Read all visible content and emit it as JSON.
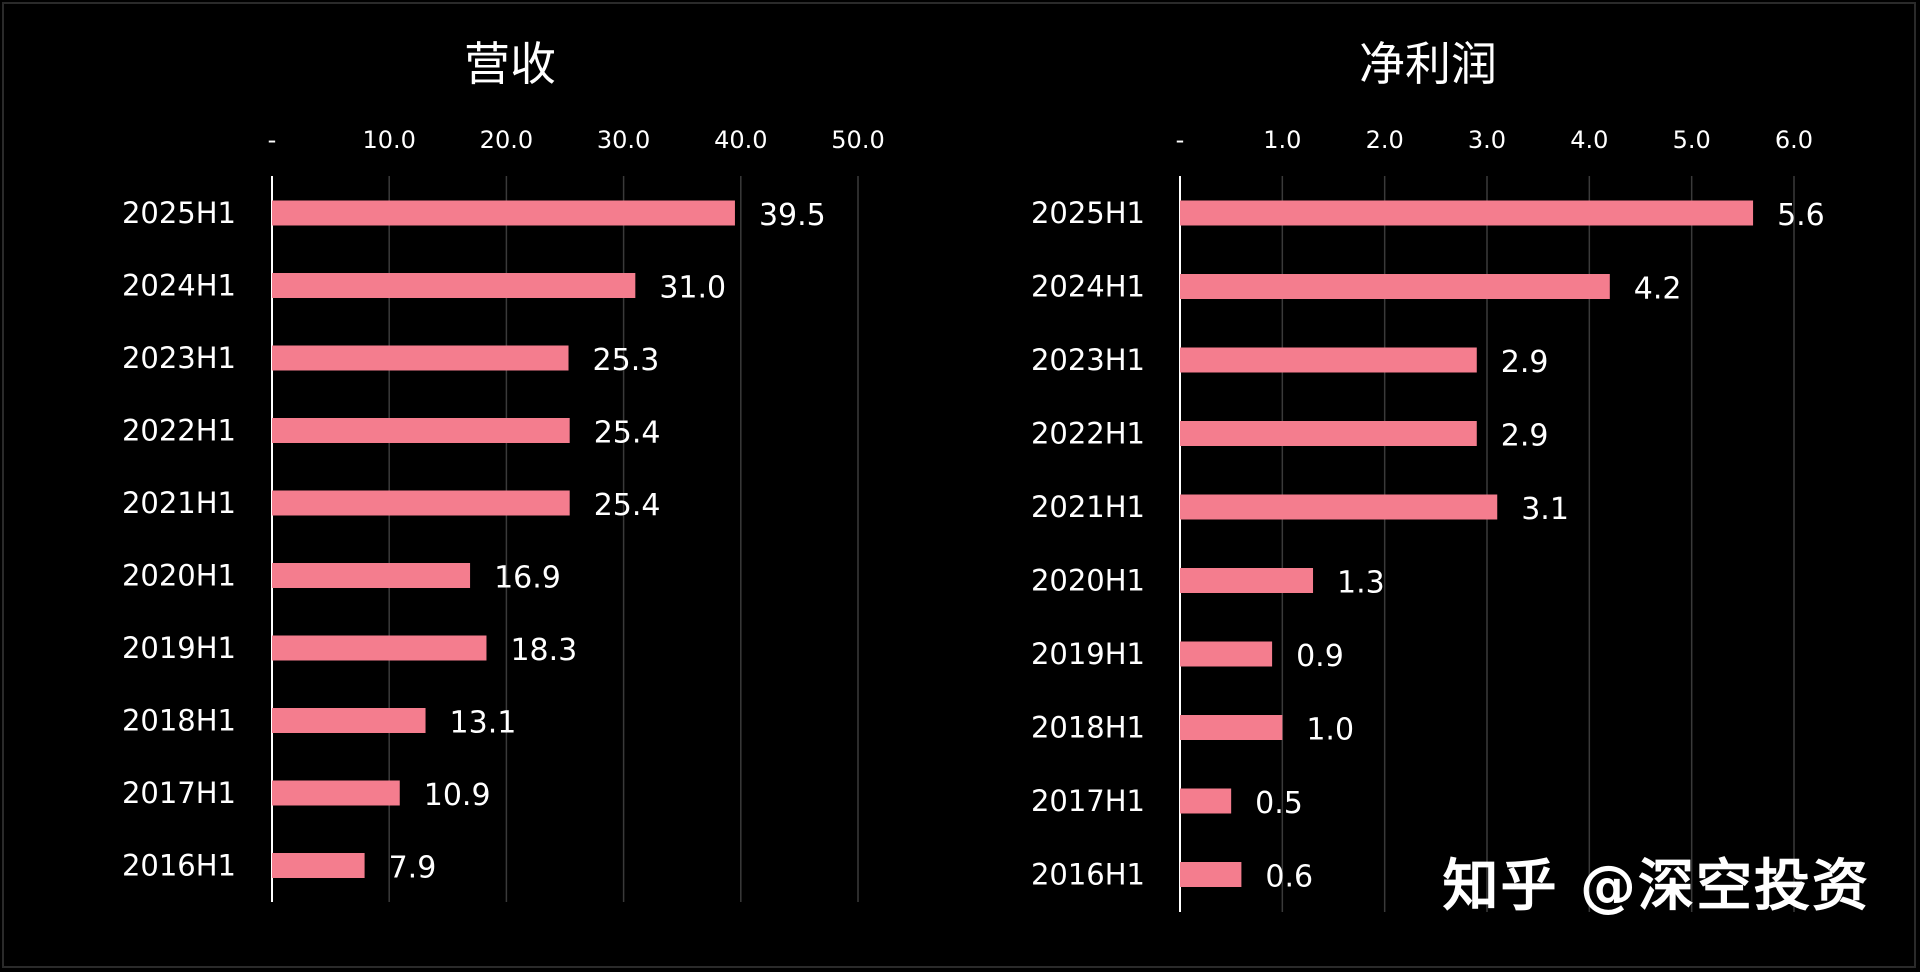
{
  "chart_data": [
    {
      "type": "bar",
      "orientation": "horizontal",
      "title": "营收",
      "categories": [
        "2025H1",
        "2024H1",
        "2023H1",
        "2022H1",
        "2021H1",
        "2020H1",
        "2019H1",
        "2018H1",
        "2017H1",
        "2016H1"
      ],
      "values": [
        39.5,
        31.0,
        25.3,
        25.4,
        25.4,
        16.9,
        18.3,
        13.1,
        10.9,
        7.9
      ],
      "value_labels": [
        "39.5",
        "31.0",
        "25.3",
        "25.4",
        "25.4",
        "16.9",
        "18.3",
        "13.1",
        "10.9",
        "7.9"
      ],
      "xlim": [
        0,
        50
      ],
      "ticks": [
        0,
        10,
        20,
        30,
        40,
        50
      ],
      "tick_labels": [
        "-",
        "10.0",
        "20.0",
        "30.0",
        "40.0",
        "50.0"
      ],
      "axis_position": "top",
      "grid": true,
      "bar_color": "#F47D8E"
    },
    {
      "type": "bar",
      "orientation": "horizontal",
      "title": "净利润",
      "categories": [
        "2025H1",
        "2024H1",
        "2023H1",
        "2022H1",
        "2021H1",
        "2020H1",
        "2019H1",
        "2018H1",
        "2017H1",
        "2016H1"
      ],
      "values": [
        5.6,
        4.2,
        2.9,
        2.9,
        3.1,
        1.3,
        0.9,
        1.0,
        0.5,
        0.6
      ],
      "value_labels": [
        "5.6",
        "4.2",
        "2.9",
        "2.9",
        "3.1",
        "1.3",
        "0.9",
        "1.0",
        "0.5",
        "0.6"
      ],
      "xlim": [
        0,
        6
      ],
      "ticks": [
        0,
        1,
        2,
        3,
        4,
        5,
        6
      ],
      "tick_labels": [
        "-",
        "1.0",
        "2.0",
        "3.0",
        "4.0",
        "5.0",
        "6.0"
      ],
      "axis_position": "top",
      "grid": true,
      "bar_color": "#F47D8E"
    }
  ],
  "watermark": "知乎 @深空投资"
}
